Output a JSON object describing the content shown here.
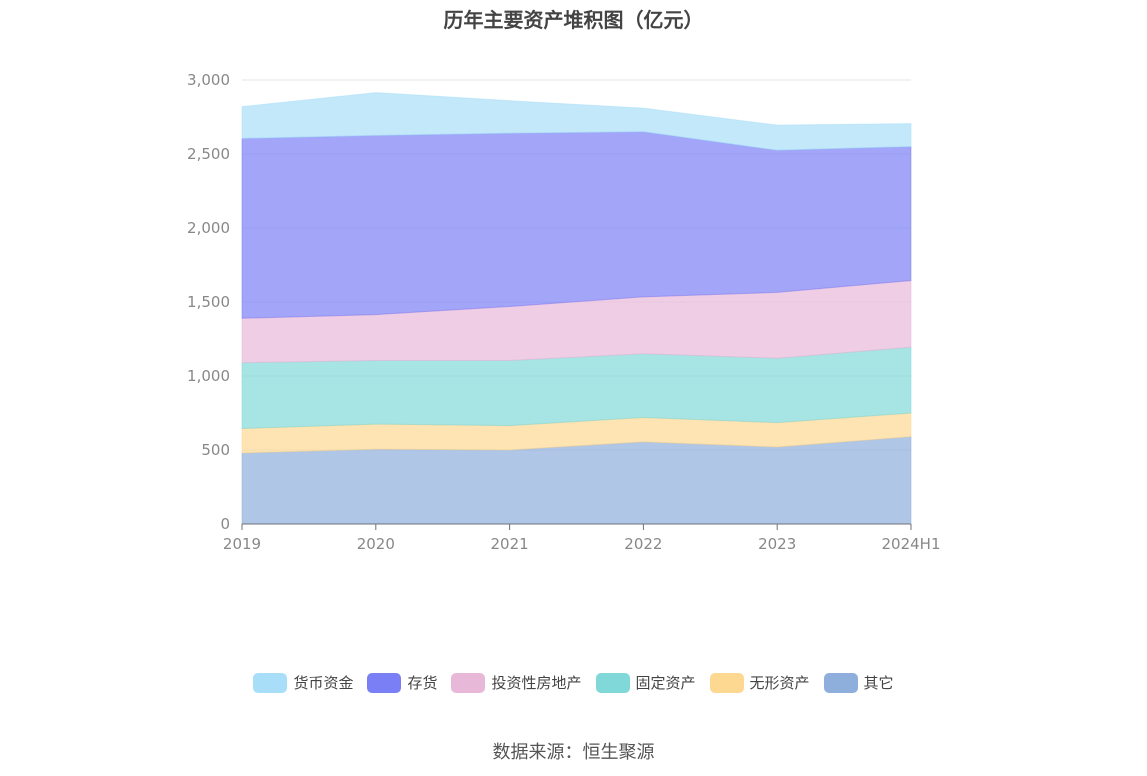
{
  "title": "历年主要资产堆积图（亿元）",
  "source": "数据来源：恒生聚源",
  "chart_data": {
    "type": "area",
    "stacked": true,
    "categories": [
      "2019",
      "2020",
      "2021",
      "2022",
      "2023",
      "2024H1"
    ],
    "ylim": [
      0,
      3000
    ],
    "yticks": [
      0,
      500,
      1000,
      1500,
      2000,
      2500,
      3000
    ],
    "ytick_labels": [
      "0",
      "500",
      "1,000",
      "1,500",
      "2,000",
      "2,500",
      "3,000"
    ],
    "grid": true,
    "legend_position": "bottom",
    "series": [
      {
        "name": "其它",
        "color": "#8eaedc",
        "values": [
          480,
          505,
          500,
          555,
          520,
          590
        ]
      },
      {
        "name": "无形资产",
        "color": "#fdd891",
        "values": [
          165,
          170,
          165,
          165,
          165,
          160
        ]
      },
      {
        "name": "固定资产",
        "color": "#81d8d8",
        "values": [
          445,
          430,
          440,
          430,
          435,
          445
        ]
      },
      {
        "name": "投资性房地产",
        "color": "#e8b8d8",
        "values": [
          300,
          310,
          365,
          385,
          445,
          450
        ]
      },
      {
        "name": "存货",
        "color": "#7b7ff5",
        "values": [
          1215,
          1210,
          1170,
          1115,
          960,
          905
        ]
      },
      {
        "name": "货币资金",
        "color": "#a8def8",
        "values": [
          215,
          290,
          220,
          160,
          170,
          155
        ]
      }
    ],
    "legend_order": [
      "货币资金",
      "存货",
      "投资性房地产",
      "固定资产",
      "无形资产",
      "其它"
    ]
  }
}
